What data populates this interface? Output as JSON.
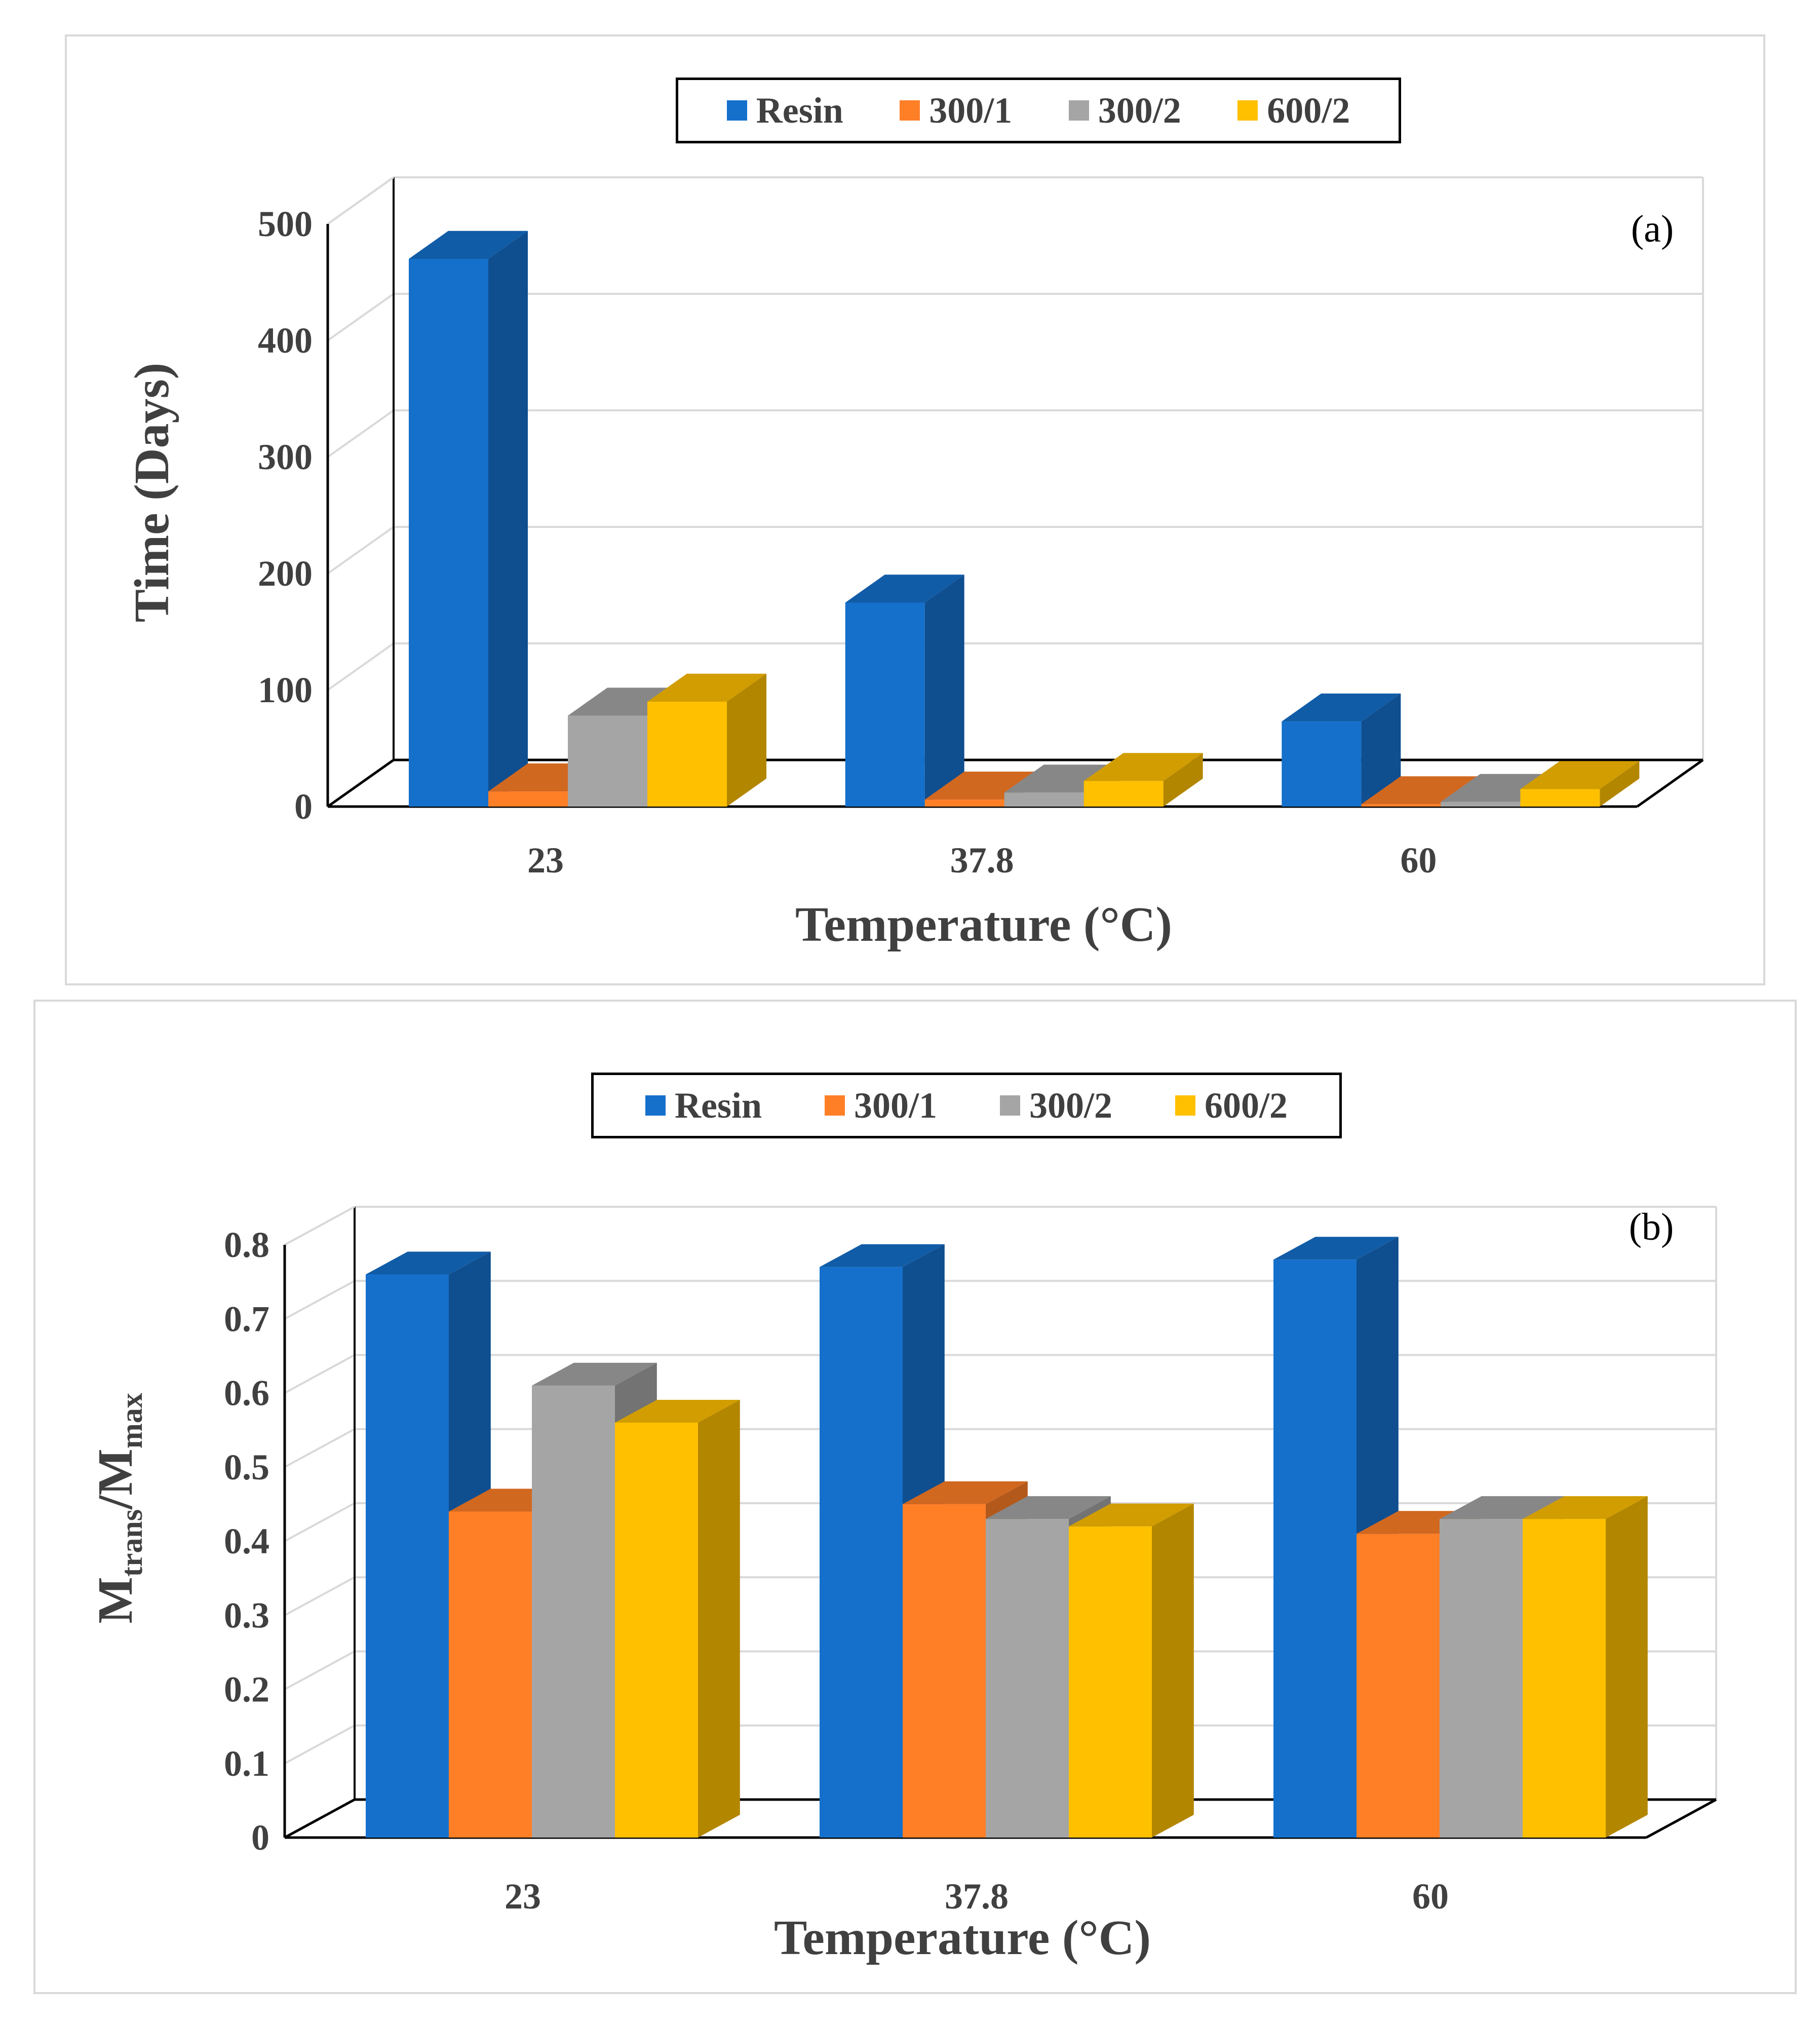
{
  "legend": {
    "series": [
      {
        "name": "Resin",
        "color": "#1570CC"
      },
      {
        "name": "300/1",
        "color": "#FF7F27"
      },
      {
        "name": "300/2",
        "color": "#A5A5A5"
      },
      {
        "name": "600/2",
        "color": "#FFC000"
      }
    ]
  },
  "chart_data": [
    {
      "type": "bar",
      "panel_label": "(a)",
      "categories": [
        "23",
        "37.8",
        "60"
      ],
      "series": [
        {
          "name": "Resin",
          "values": [
            470,
            175,
            73
          ]
        },
        {
          "name": "300/1",
          "values": [
            13,
            6,
            2
          ]
        },
        {
          "name": "300/2",
          "values": [
            78,
            12,
            4
          ]
        },
        {
          "name": "600/2",
          "values": [
            90,
            22,
            15
          ]
        }
      ],
      "xlabel": "Temperature (°C)",
      "ylabel": "Time (Days)",
      "ylim": [
        0,
        500
      ],
      "yticks": [
        "0",
        "100",
        "200",
        "300",
        "400",
        "500"
      ],
      "grid": true
    },
    {
      "type": "bar",
      "panel_label": "(b)",
      "categories": [
        "23",
        "37.8",
        "60"
      ],
      "series": [
        {
          "name": "Resin",
          "values": [
            0.76,
            0.77,
            0.78
          ]
        },
        {
          "name": "300/1",
          "values": [
            0.44,
            0.45,
            0.41
          ]
        },
        {
          "name": "300/2",
          "values": [
            0.61,
            0.43,
            0.43
          ]
        },
        {
          "name": "600/2",
          "values": [
            0.56,
            0.42,
            0.43
          ]
        }
      ],
      "xlabel": "Temperature (°C)",
      "ylabel": "Mtrans/Mmax",
      "ylabel_main": "M",
      "ylabel_sub1": "trans",
      "ylabel_slash": "/M",
      "ylabel_sub2": "max",
      "ylim": [
        0,
        0.8
      ],
      "yticks": [
        "0",
        "0.1",
        "0.2",
        "0.3",
        "0.4",
        "0.5",
        "0.6",
        "0.7",
        "0.8"
      ],
      "grid": true
    }
  ]
}
